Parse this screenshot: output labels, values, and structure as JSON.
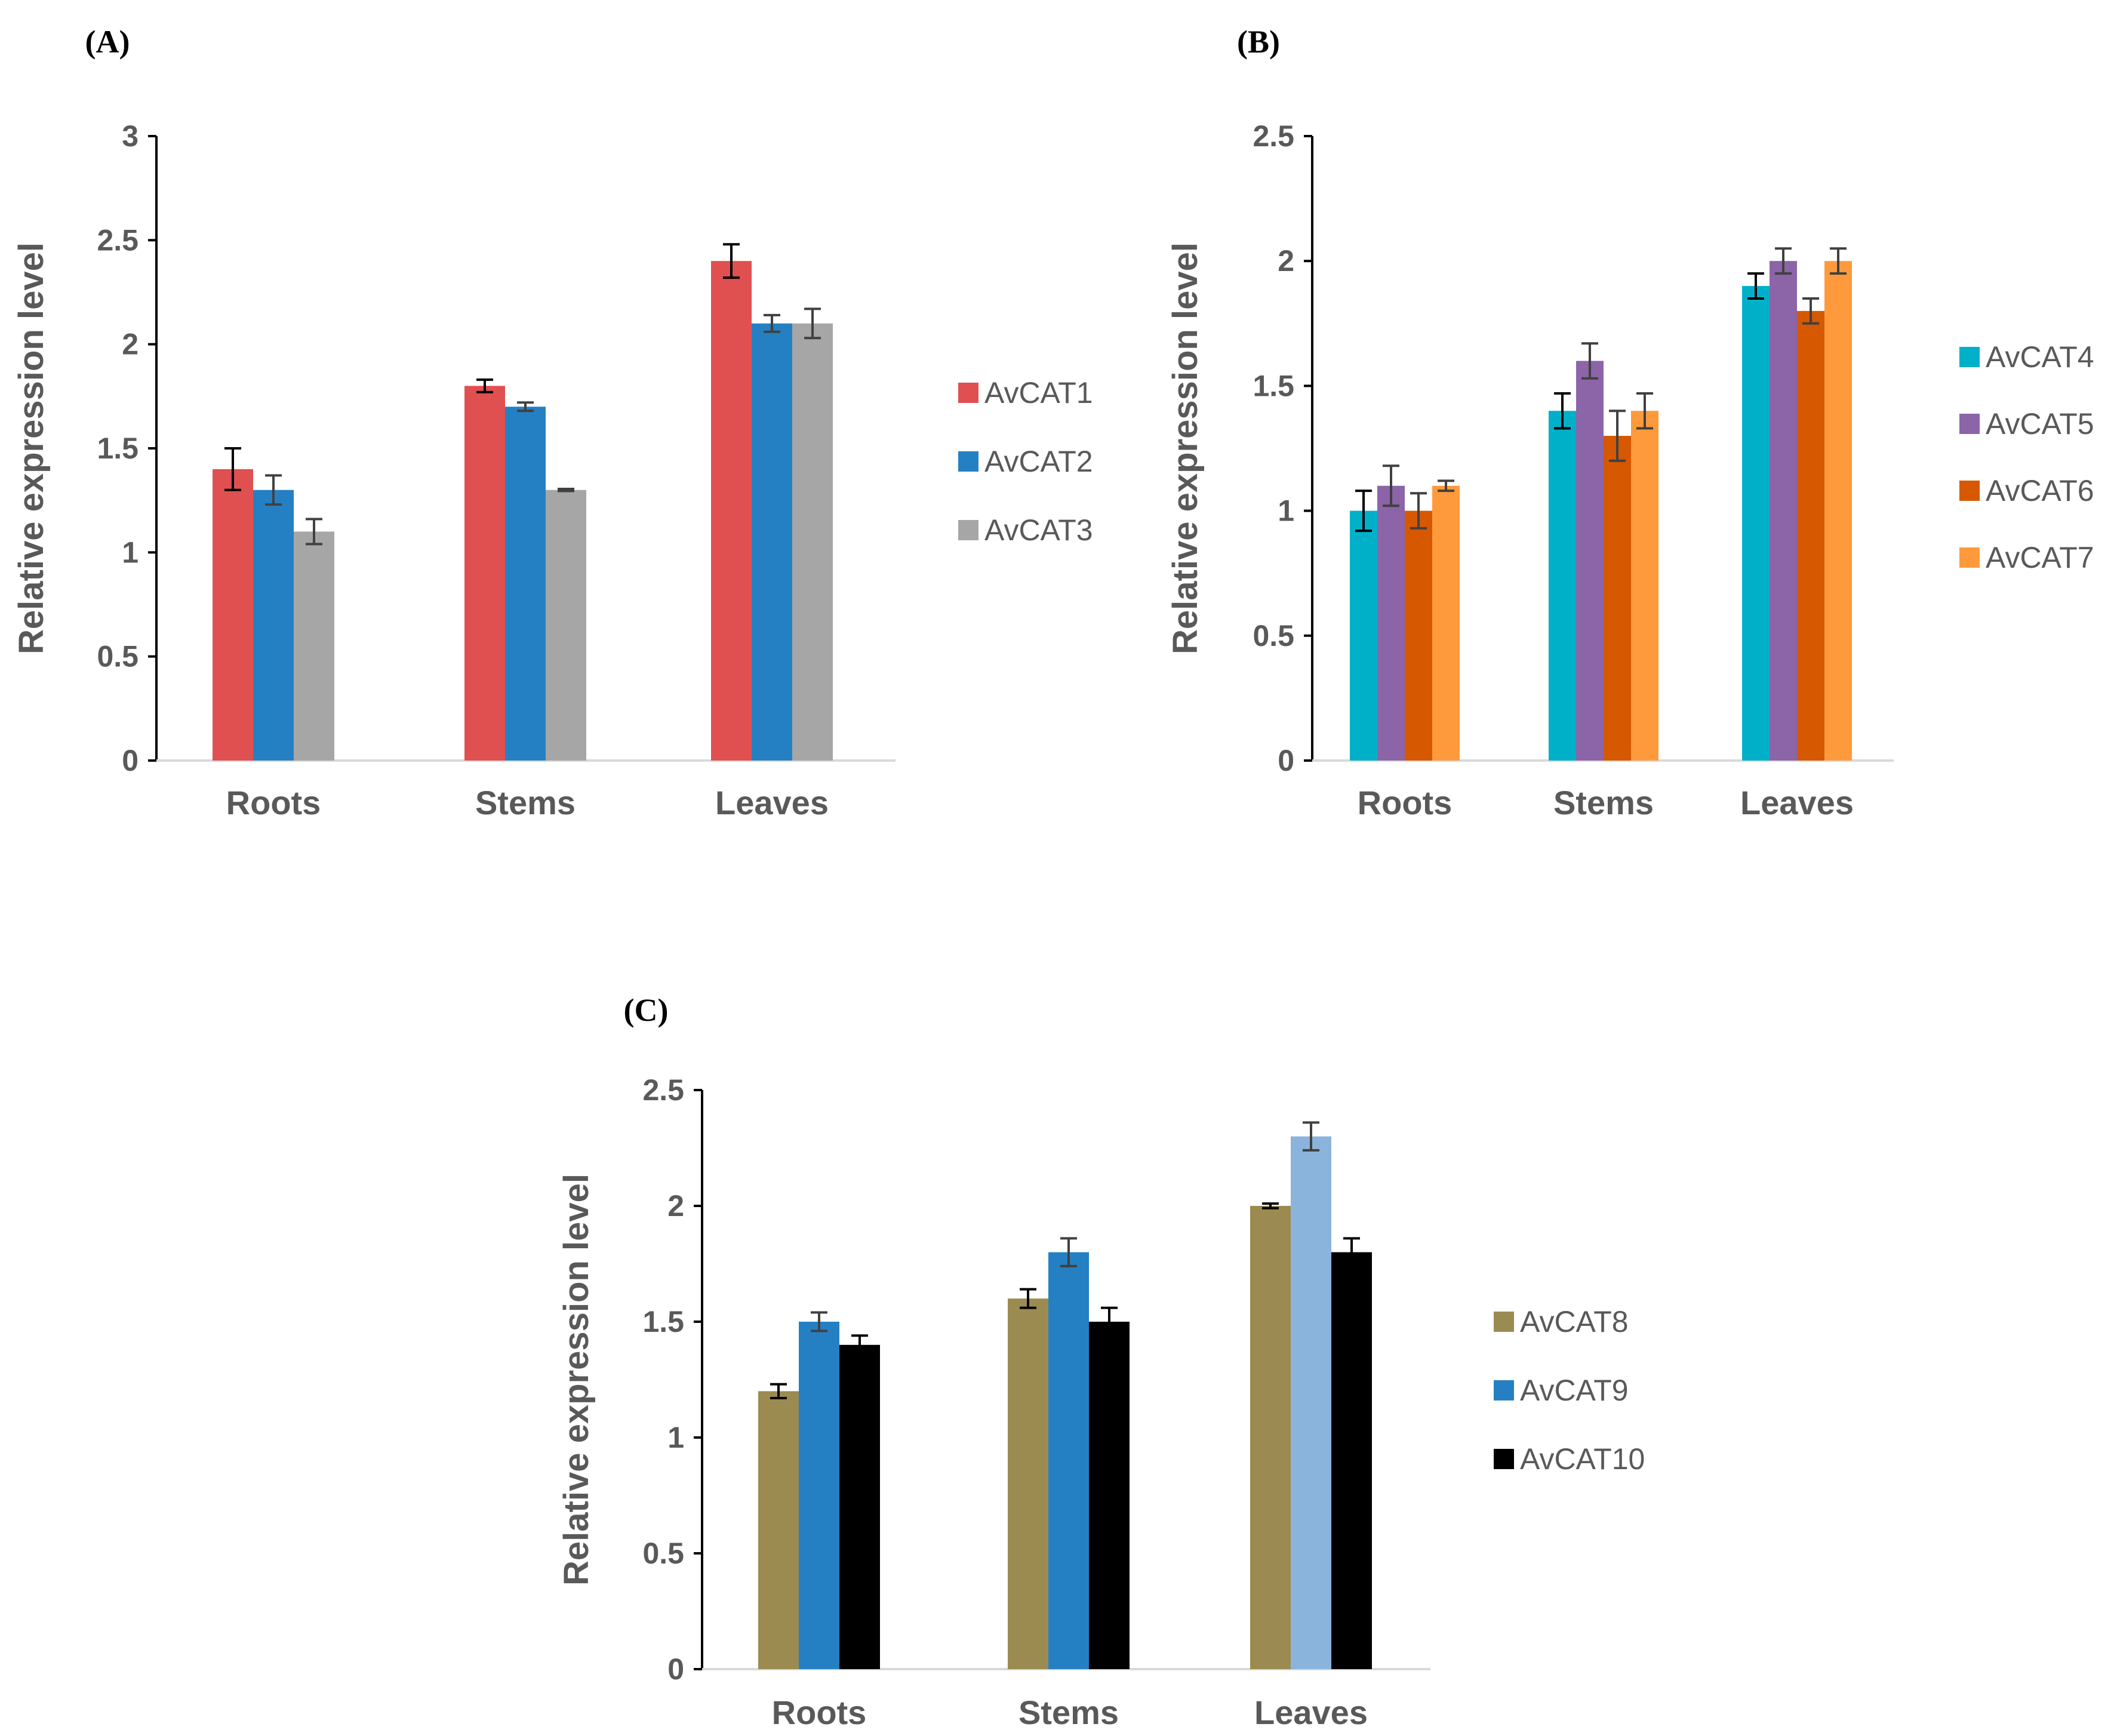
{
  "chart_data": [
    {
      "panel": "(A)",
      "type": "bar",
      "categories": [
        "Roots",
        "Stems",
        "Leaves"
      ],
      "ylabel": "Relative expression level",
      "ylim": [
        0,
        3
      ],
      "yticks": [
        0,
        0.5,
        1,
        1.5,
        2,
        2.5,
        3
      ],
      "yticklabels": [
        "0",
        "0.5",
        "1",
        "1.5",
        "2",
        "2.5",
        "3"
      ],
      "legend_position": "right",
      "series": [
        {
          "name": "AvCAT1",
          "color": "#E05050",
          "values": [
            1.4,
            1.8,
            2.4
          ],
          "errors": [
            0.1,
            0.03,
            0.08
          ],
          "error_color": "#000000"
        },
        {
          "name": "AvCAT2",
          "color": "#2580C3",
          "values": [
            1.3,
            1.7,
            2.1
          ],
          "errors": [
            0.07,
            0.02,
            0.04
          ],
          "error_color": "#404040"
        },
        {
          "name": "AvCAT3",
          "color": "#A6A6A6",
          "values": [
            1.1,
            1.3,
            2.1
          ],
          "errors": [
            0.06,
            0.005,
            0.07
          ],
          "error_color": "#404040"
        }
      ]
    },
    {
      "panel": "(B)",
      "type": "bar",
      "categories": [
        "Roots",
        "Stems",
        "Leaves"
      ],
      "ylabel": "Relative expression level",
      "ylim": [
        0,
        2.5
      ],
      "yticks": [
        0,
        0.5,
        1,
        1.5,
        2,
        2.5
      ],
      "yticklabels": [
        "0",
        "0.5",
        "1",
        "1.5",
        "2",
        "2.5"
      ],
      "legend_position": "right",
      "series": [
        {
          "name": "AvCAT4",
          "color": "#00B0C8",
          "values": [
            1.0,
            1.4,
            1.9
          ],
          "errors": [
            0.08,
            0.07,
            0.05
          ],
          "error_color": "#000000"
        },
        {
          "name": "AvCAT5",
          "color": "#8C64A8",
          "values": [
            1.1,
            1.6,
            2.0
          ],
          "errors": [
            0.08,
            0.07,
            0.05
          ],
          "error_color": "#404040"
        },
        {
          "name": "AvCAT6",
          "color": "#D65800",
          "values": [
            1.0,
            1.3,
            1.8
          ],
          "errors": [
            0.07,
            0.1,
            0.05
          ],
          "error_color": "#404040"
        },
        {
          "name": "AvCAT7",
          "color": "#FF9A3C",
          "values": [
            1.1,
            1.4,
            2.0
          ],
          "errors": [
            0.02,
            0.07,
            0.05
          ],
          "error_color": "#404040"
        }
      ]
    },
    {
      "panel": "(C)",
      "type": "bar",
      "categories": [
        "Roots",
        "Stems",
        "Leaves"
      ],
      "ylabel": "Relative expression level",
      "ylim": [
        0,
        2.5
      ],
      "yticks": [
        0,
        0.5,
        1,
        1.5,
        2,
        2.5
      ],
      "yticklabels": [
        "0",
        "0.5",
        "1",
        "1.5",
        "2",
        "2.5"
      ],
      "legend_position": "right",
      "series": [
        {
          "name": "AvCAT8",
          "color": "#9B8B50",
          "values": [
            1.2,
            1.6,
            2.0
          ],
          "errors": [
            0.03,
            0.04,
            0.01
          ],
          "error_color": "#000000"
        },
        {
          "name": "AvCAT9",
          "color": "#2580C3",
          "values": [
            1.5,
            1.8,
            2.3
          ],
          "errors": [
            0.04,
            0.06,
            0.06
          ],
          "error_color": "#404040",
          "point_colors": [
            "#2580C3",
            "#2580C3",
            "#8BB4DC"
          ]
        },
        {
          "name": "AvCAT10",
          "color": "#000000",
          "values": [
            1.4,
            1.5,
            1.8
          ],
          "errors": [
            0.04,
            0.06,
            0.06
          ],
          "error_color": "#000000"
        }
      ]
    }
  ]
}
